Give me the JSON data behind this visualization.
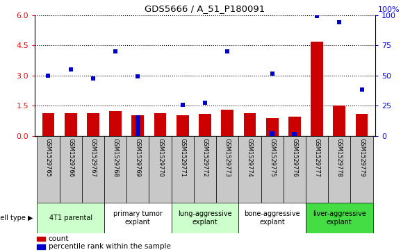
{
  "title": "GDS5666 / A_51_P180091",
  "gsm_labels": [
    "GSM1529765",
    "GSM1529766",
    "GSM1529767",
    "GSM1529768",
    "GSM1529769",
    "GSM1529770",
    "GSM1529771",
    "GSM1529772",
    "GSM1529773",
    "GSM1529774",
    "GSM1529775",
    "GSM1529776",
    "GSM1529777",
    "GSM1529778",
    "GSM1529779"
  ],
  "bar_values": [
    1.15,
    1.15,
    1.15,
    1.25,
    1.05,
    1.15,
    1.05,
    1.1,
    1.3,
    1.15,
    0.9,
    0.95,
    4.7,
    1.5,
    1.1
  ],
  "dot_values": [
    3.0,
    3.3,
    2.85,
    4.2,
    2.95,
    null,
    1.55,
    1.65,
    4.2,
    null,
    3.1,
    null,
    5.95,
    5.65,
    2.3
  ],
  "bar_color": "#cc0000",
  "dot_color": "#0000cc",
  "ylim_left": [
    0,
    6
  ],
  "ylim_right": [
    0,
    100
  ],
  "yticks_left": [
    0,
    1.5,
    3.0,
    4.5,
    6.0
  ],
  "yticks_right": [
    0,
    25,
    50,
    75,
    100
  ],
  "cell_groups": [
    {
      "label": "4T1 parental",
      "start": 0,
      "end": 3,
      "color": "#ccffcc"
    },
    {
      "label": "primary tumor\nexplant",
      "start": 3,
      "end": 6,
      "color": "#ffffff"
    },
    {
      "label": "lung-aggressive\nexplant",
      "start": 6,
      "end": 9,
      "color": "#ccffcc"
    },
    {
      "label": "bone-aggressive\nexplant",
      "start": 9,
      "end": 12,
      "color": "#ffffff"
    },
    {
      "label": "liver-aggressive\nexplant",
      "start": 12,
      "end": 15,
      "color": "#44dd44"
    }
  ],
  "legend_count_label": "count",
  "legend_pct_label": "percentile rank within the sample",
  "cell_type_label": "cell type",
  "right_axis_pct": "100%",
  "grid_dotted": true,
  "gsm_bg_color": "#c8c8c8",
  "bar_blue_extra": [
    {
      "idx": 4,
      "val": 1.05
    },
    {
      "idx": 10,
      "val": 0.25
    },
    {
      "idx": 11,
      "val": 0.2
    }
  ]
}
